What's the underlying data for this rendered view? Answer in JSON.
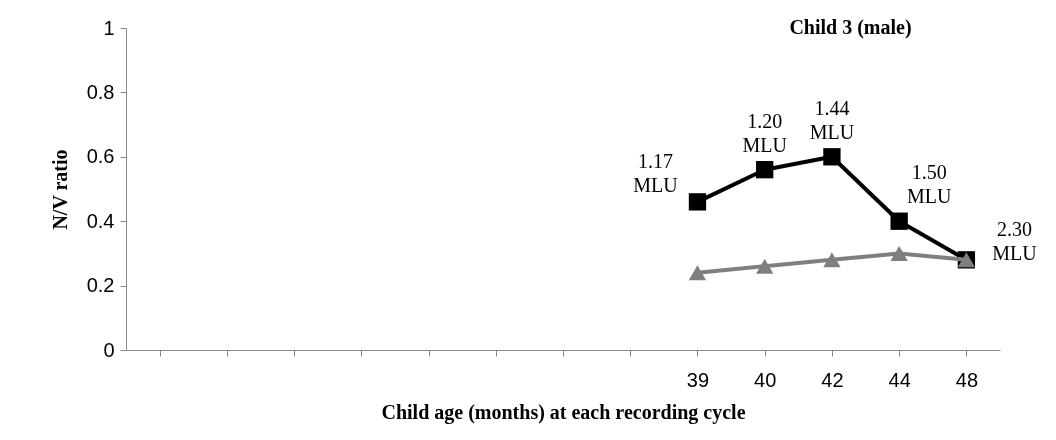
{
  "chart_data": {
    "type": "line",
    "title": "Child 3 (male)",
    "xlabel": "Child age (months) at each recording cycle",
    "ylabel": "N/V ratio",
    "categories": [
      null,
      null,
      null,
      null,
      null,
      null,
      null,
      null,
      "39",
      "40",
      "42",
      "44",
      "48"
    ],
    "series": [
      {
        "color": "#000000",
        "marker": "square",
        "values": [
          null,
          null,
          null,
          null,
          null,
          null,
          null,
          null,
          0.46,
          0.56,
          0.6,
          0.4,
          0.28
        ]
      },
      {
        "color": "#7f7f7f",
        "marker": "triangle",
        "values": [
          null,
          null,
          null,
          null,
          null,
          null,
          null,
          null,
          0.24,
          0.26,
          0.28,
          0.3,
          0.28
        ]
      }
    ],
    "ylim": [
      0,
      1
    ],
    "yticks": [
      0,
      0.2,
      0.4,
      0.6,
      0.8,
      1
    ],
    "grid": false,
    "annotations": [
      {
        "text": "1.17 MLU",
        "x": "39",
        "y": 0.46
      },
      {
        "text": "1.20 MLU",
        "x": "40",
        "y": 0.56
      },
      {
        "text": "1.44 MLU",
        "x": "42",
        "y": 0.6
      },
      {
        "text": "1.50 MLU",
        "x": "44",
        "y": 0.4
      },
      {
        "text": "2.30 MLU",
        "x": "48",
        "y": 0.28
      }
    ]
  }
}
